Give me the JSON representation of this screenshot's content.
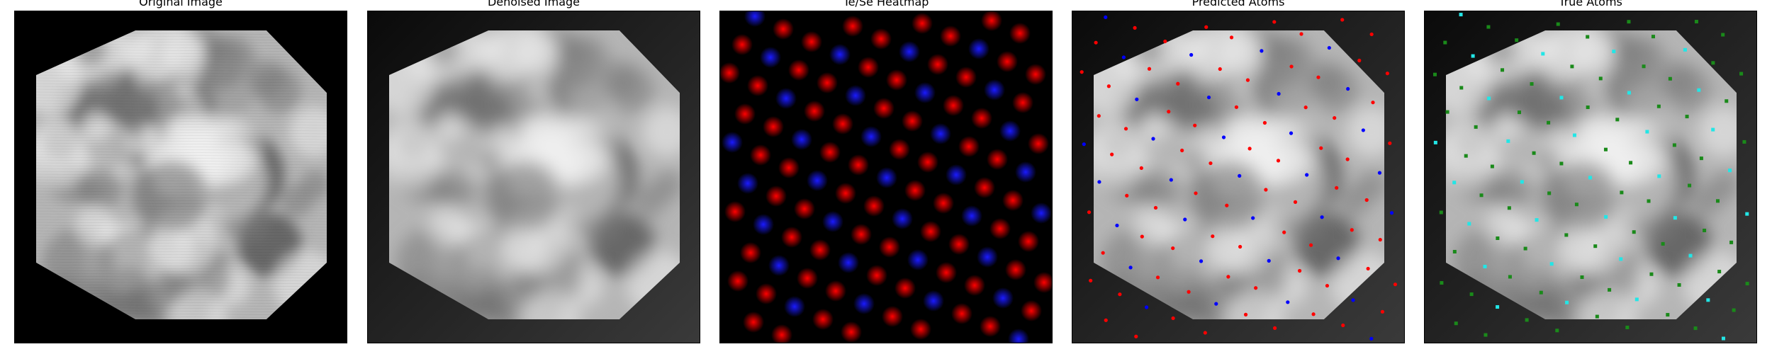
{
  "panels": [
    {
      "title": "Original Image",
      "kind": "original"
    },
    {
      "title": "Denoised Image",
      "kind": "denoised"
    },
    {
      "title": "Te/Se Heatmap",
      "kind": "heatmap"
    },
    {
      "title": "Predicted Atoms",
      "kind": "predicted"
    },
    {
      "title": "True Atoms",
      "kind": "true"
    }
  ],
  "colors": {
    "te_predicted": "#ff0000",
    "se_predicted": "#0000ff",
    "te_true": "#1a8a1a",
    "se_true": "#22e6e6",
    "heatmap_te": "#ff0000",
    "heatmap_se": "#1a1aff"
  }
}
